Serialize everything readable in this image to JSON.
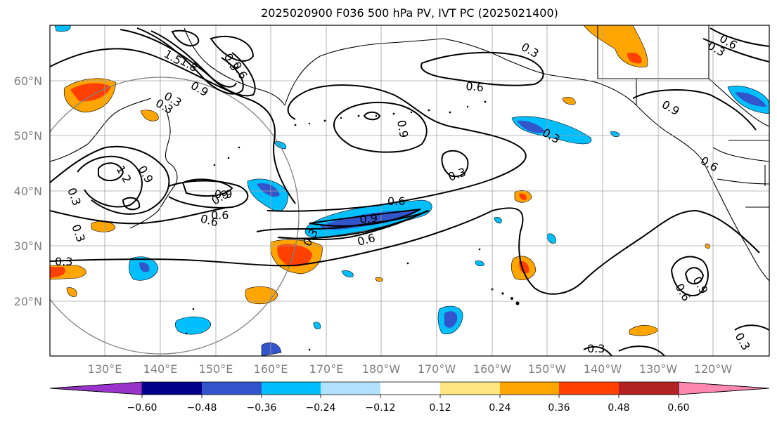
{
  "title": "2025020900 F036 500 hPa PV, IVT PC (2025021400)",
  "latitude_labels": [
    "60°N",
    "50°N",
    "40°N",
    "30°N",
    "20°N"
  ],
  "longitude_labels": [
    "130°E",
    "140°E",
    "150°E",
    "160°E",
    "170°E",
    "180°W",
    "170°W",
    "160°W",
    "150°W",
    "140°W",
    "130°W",
    "120°W"
  ],
  "colorbar": {
    "tick_labels": [
      "−0.60",
      "−0.48",
      "−0.36",
      "−0.24",
      "−0.12",
      "0.12",
      "0.24",
      "0.36",
      "0.48",
      "0.60"
    ],
    "colors": [
      "#9933cc",
      "#00008b",
      "#3355cc",
      "#00bfff",
      "#b0e2ff",
      "#ffffff",
      "#ffe680",
      "#ffa500",
      "#ff4000",
      "#b22222",
      "#ff88b0"
    ]
  },
  "contour_labels": [
    "1.8",
    "1.5",
    "0.9",
    "0.3",
    "0.6",
    "0.9",
    "0.3",
    "0.6",
    "0.3",
    "0.6",
    "0.9",
    "0.6",
    "0.9",
    "0.3",
    "0.6",
    "0.3",
    "0.9",
    "0.6",
    "1.2",
    "0.9",
    "0.3",
    "0.3",
    "0.3",
    "0.6",
    "0.9",
    "0.6",
    "0.3",
    "0.3",
    "0.3",
    "0.9",
    "0.6",
    "0.3",
    "0.3"
  ]
}
